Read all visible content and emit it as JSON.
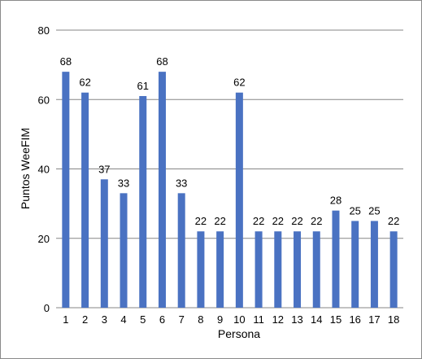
{
  "chart_data": {
    "type": "bar",
    "title": "",
    "xlabel": "Persona",
    "ylabel": "Puntos WeeFIM",
    "ylim": [
      0,
      80
    ],
    "yticks": [
      0,
      20,
      40,
      60,
      80
    ],
    "grid": true,
    "legend": "none",
    "categories": [
      "1",
      "2",
      "3",
      "4",
      "5",
      "6",
      "7",
      "8",
      "9",
      "10",
      "11",
      "12",
      "13",
      "14",
      "15",
      "16",
      "17",
      "18"
    ],
    "values": [
      68,
      62,
      37,
      33,
      61,
      68,
      33,
      22,
      22,
      62,
      22,
      22,
      22,
      22,
      28,
      25,
      25,
      22
    ],
    "colors": {
      "bar": "#4a72c2",
      "grid": "#868686",
      "axis": "#868686"
    }
  }
}
